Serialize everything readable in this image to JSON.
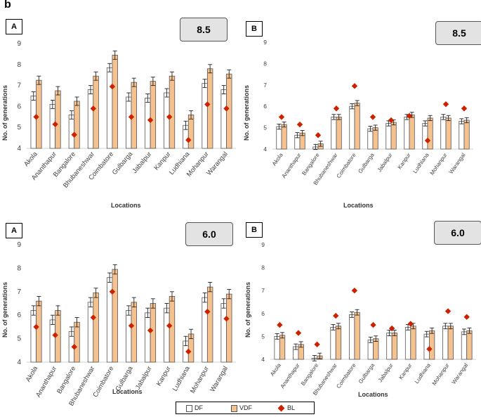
{
  "figure_label": "b",
  "legend": {
    "df": "DF",
    "vdf": "VDF",
    "bl": "BL"
  },
  "colors": {
    "df": "#ffffff",
    "vdf": "#f5c18e",
    "bl": "#cc2200",
    "bar_edge": "#555555",
    "axis": "#d0d0d0"
  },
  "chart_data": [
    {
      "type": "bar",
      "panel_label": "A",
      "scenario": "8.5",
      "xlabel": "Locations",
      "ylabel": "No. of generations",
      "ylim": [
        4,
        9
      ],
      "yticks": [
        4,
        5,
        6,
        7,
        8,
        9
      ],
      "categories": [
        "Akola",
        "Ananthapur",
        "Bangalore",
        "Bhubaneshwar",
        "Coimbatore",
        "Gulbarga",
        "Jabalpur",
        "Kanpur",
        "Ludhiana",
        "Mohanpur",
        "Warangal"
      ],
      "series": [
        {
          "name": "DF",
          "values": [
            6.5,
            6.1,
            5.6,
            6.8,
            7.85,
            6.45,
            6.4,
            6.65,
            5.1,
            7.1,
            6.8
          ],
          "errors": [
            0.2,
            0.2,
            0.2,
            0.2,
            0.2,
            0.2,
            0.2,
            0.2,
            0.2,
            0.2,
            0.2
          ]
        },
        {
          "name": "VDF",
          "values": [
            7.25,
            6.75,
            6.25,
            7.45,
            8.45,
            7.15,
            7.2,
            7.45,
            5.6,
            7.8,
            7.55
          ],
          "errors": [
            0.2,
            0.2,
            0.2,
            0.2,
            0.2,
            0.2,
            0.2,
            0.2,
            0.2,
            0.2,
            0.2
          ]
        },
        {
          "name": "BL",
          "values": [
            5.5,
            5.15,
            4.65,
            5.9,
            6.95,
            5.5,
            5.35,
            5.5,
            4.4,
            6.1,
            5.9
          ]
        }
      ]
    },
    {
      "type": "bar",
      "panel_label": "B",
      "scenario": "8.5",
      "xlabel": "Locations",
      "ylabel": "No. of generations",
      "ylim": [
        4,
        9
      ],
      "yticks": [
        4,
        5,
        6,
        7,
        8,
        9
      ],
      "categories": [
        "Akola",
        "Ananthapur",
        "Bangalore",
        "Bhubaneshwar",
        "Coimbatore",
        "Gulbarga",
        "Jabalpur",
        "Kanpur",
        "Ludhiana",
        "Mohanpur",
        "Warangal"
      ],
      "series": [
        {
          "name": "DF",
          "values": [
            5.05,
            4.65,
            4.1,
            5.5,
            6.0,
            4.95,
            5.2,
            5.5,
            5.2,
            5.5,
            5.3
          ],
          "errors": [
            0.12,
            0.12,
            0.12,
            0.12,
            0.12,
            0.12,
            0.12,
            0.12,
            0.12,
            0.12,
            0.12
          ]
        },
        {
          "name": "VDF",
          "values": [
            5.15,
            4.75,
            4.25,
            5.5,
            6.15,
            5.0,
            5.25,
            5.6,
            5.45,
            5.45,
            5.35
          ],
          "errors": [
            0.12,
            0.12,
            0.12,
            0.12,
            0.12,
            0.12,
            0.12,
            0.12,
            0.12,
            0.12,
            0.12
          ]
        },
        {
          "name": "BL",
          "values": [
            5.5,
            5.15,
            4.65,
            5.9,
            6.95,
            5.5,
            5.35,
            5.55,
            4.4,
            6.1,
            5.9
          ]
        }
      ]
    },
    {
      "type": "bar",
      "panel_label": "A",
      "scenario": "6.0",
      "xlabel": "Locations",
      "ylabel": "No. of generations",
      "ylim": [
        4,
        9
      ],
      "yticks": [
        4,
        5,
        6,
        7,
        8,
        9
      ],
      "categories": [
        "Akola",
        "Ananthapur",
        "Bangalore",
        "Bhubaneshwar",
        "Coimbatore",
        "Gulbarga",
        "Jabalpur",
        "Kanpur",
        "Ludhiana",
        "Mohanpur",
        "Warangal"
      ],
      "series": [
        {
          "name": "DF",
          "values": [
            6.2,
            5.8,
            5.3,
            6.55,
            7.6,
            6.2,
            6.1,
            6.3,
            4.9,
            6.75,
            6.5
          ],
          "errors": [
            0.2,
            0.2,
            0.2,
            0.2,
            0.2,
            0.2,
            0.2,
            0.2,
            0.2,
            0.2,
            0.2
          ]
        },
        {
          "name": "VDF",
          "values": [
            6.6,
            6.2,
            5.7,
            6.95,
            7.95,
            6.55,
            6.5,
            6.8,
            5.2,
            7.2,
            6.9
          ],
          "errors": [
            0.2,
            0.2,
            0.2,
            0.2,
            0.2,
            0.2,
            0.2,
            0.2,
            0.2,
            0.2,
            0.2
          ]
        },
        {
          "name": "BL",
          "values": [
            5.5,
            5.15,
            4.65,
            5.9,
            7.0,
            5.55,
            5.35,
            5.55,
            4.45,
            6.15,
            5.85
          ]
        }
      ]
    },
    {
      "type": "bar",
      "panel_label": "B",
      "scenario": "6.0",
      "xlabel": "Locations",
      "ylabel": "No. of generations",
      "ylim": [
        4,
        9
      ],
      "yticks": [
        4,
        5,
        6,
        7,
        8,
        9
      ],
      "categories": [
        "Akola",
        "Ananthapur",
        "Bangalore",
        "Bhubaneshwar",
        "Coimbatore",
        "Gulbarga",
        "Jabalpur",
        "Kanpur",
        "Ludhiana",
        "Mohanpur",
        "Warangal"
      ],
      "series": [
        {
          "name": "DF",
          "values": [
            5.0,
            4.55,
            4.05,
            5.4,
            5.95,
            4.85,
            5.15,
            5.4,
            5.1,
            5.45,
            5.2
          ],
          "errors": [
            0.12,
            0.12,
            0.12,
            0.12,
            0.12,
            0.12,
            0.12,
            0.12,
            0.12,
            0.12,
            0.12
          ]
        },
        {
          "name": "VDF",
          "values": [
            5.05,
            4.65,
            4.15,
            5.45,
            6.05,
            4.9,
            5.15,
            5.45,
            5.25,
            5.45,
            5.25
          ],
          "errors": [
            0.12,
            0.12,
            0.12,
            0.12,
            0.12,
            0.12,
            0.12,
            0.12,
            0.12,
            0.12,
            0.12
          ]
        },
        {
          "name": "BL",
          "values": [
            5.5,
            5.15,
            4.65,
            5.9,
            7.0,
            5.5,
            5.35,
            5.55,
            4.45,
            6.1,
            5.85
          ]
        }
      ]
    }
  ]
}
